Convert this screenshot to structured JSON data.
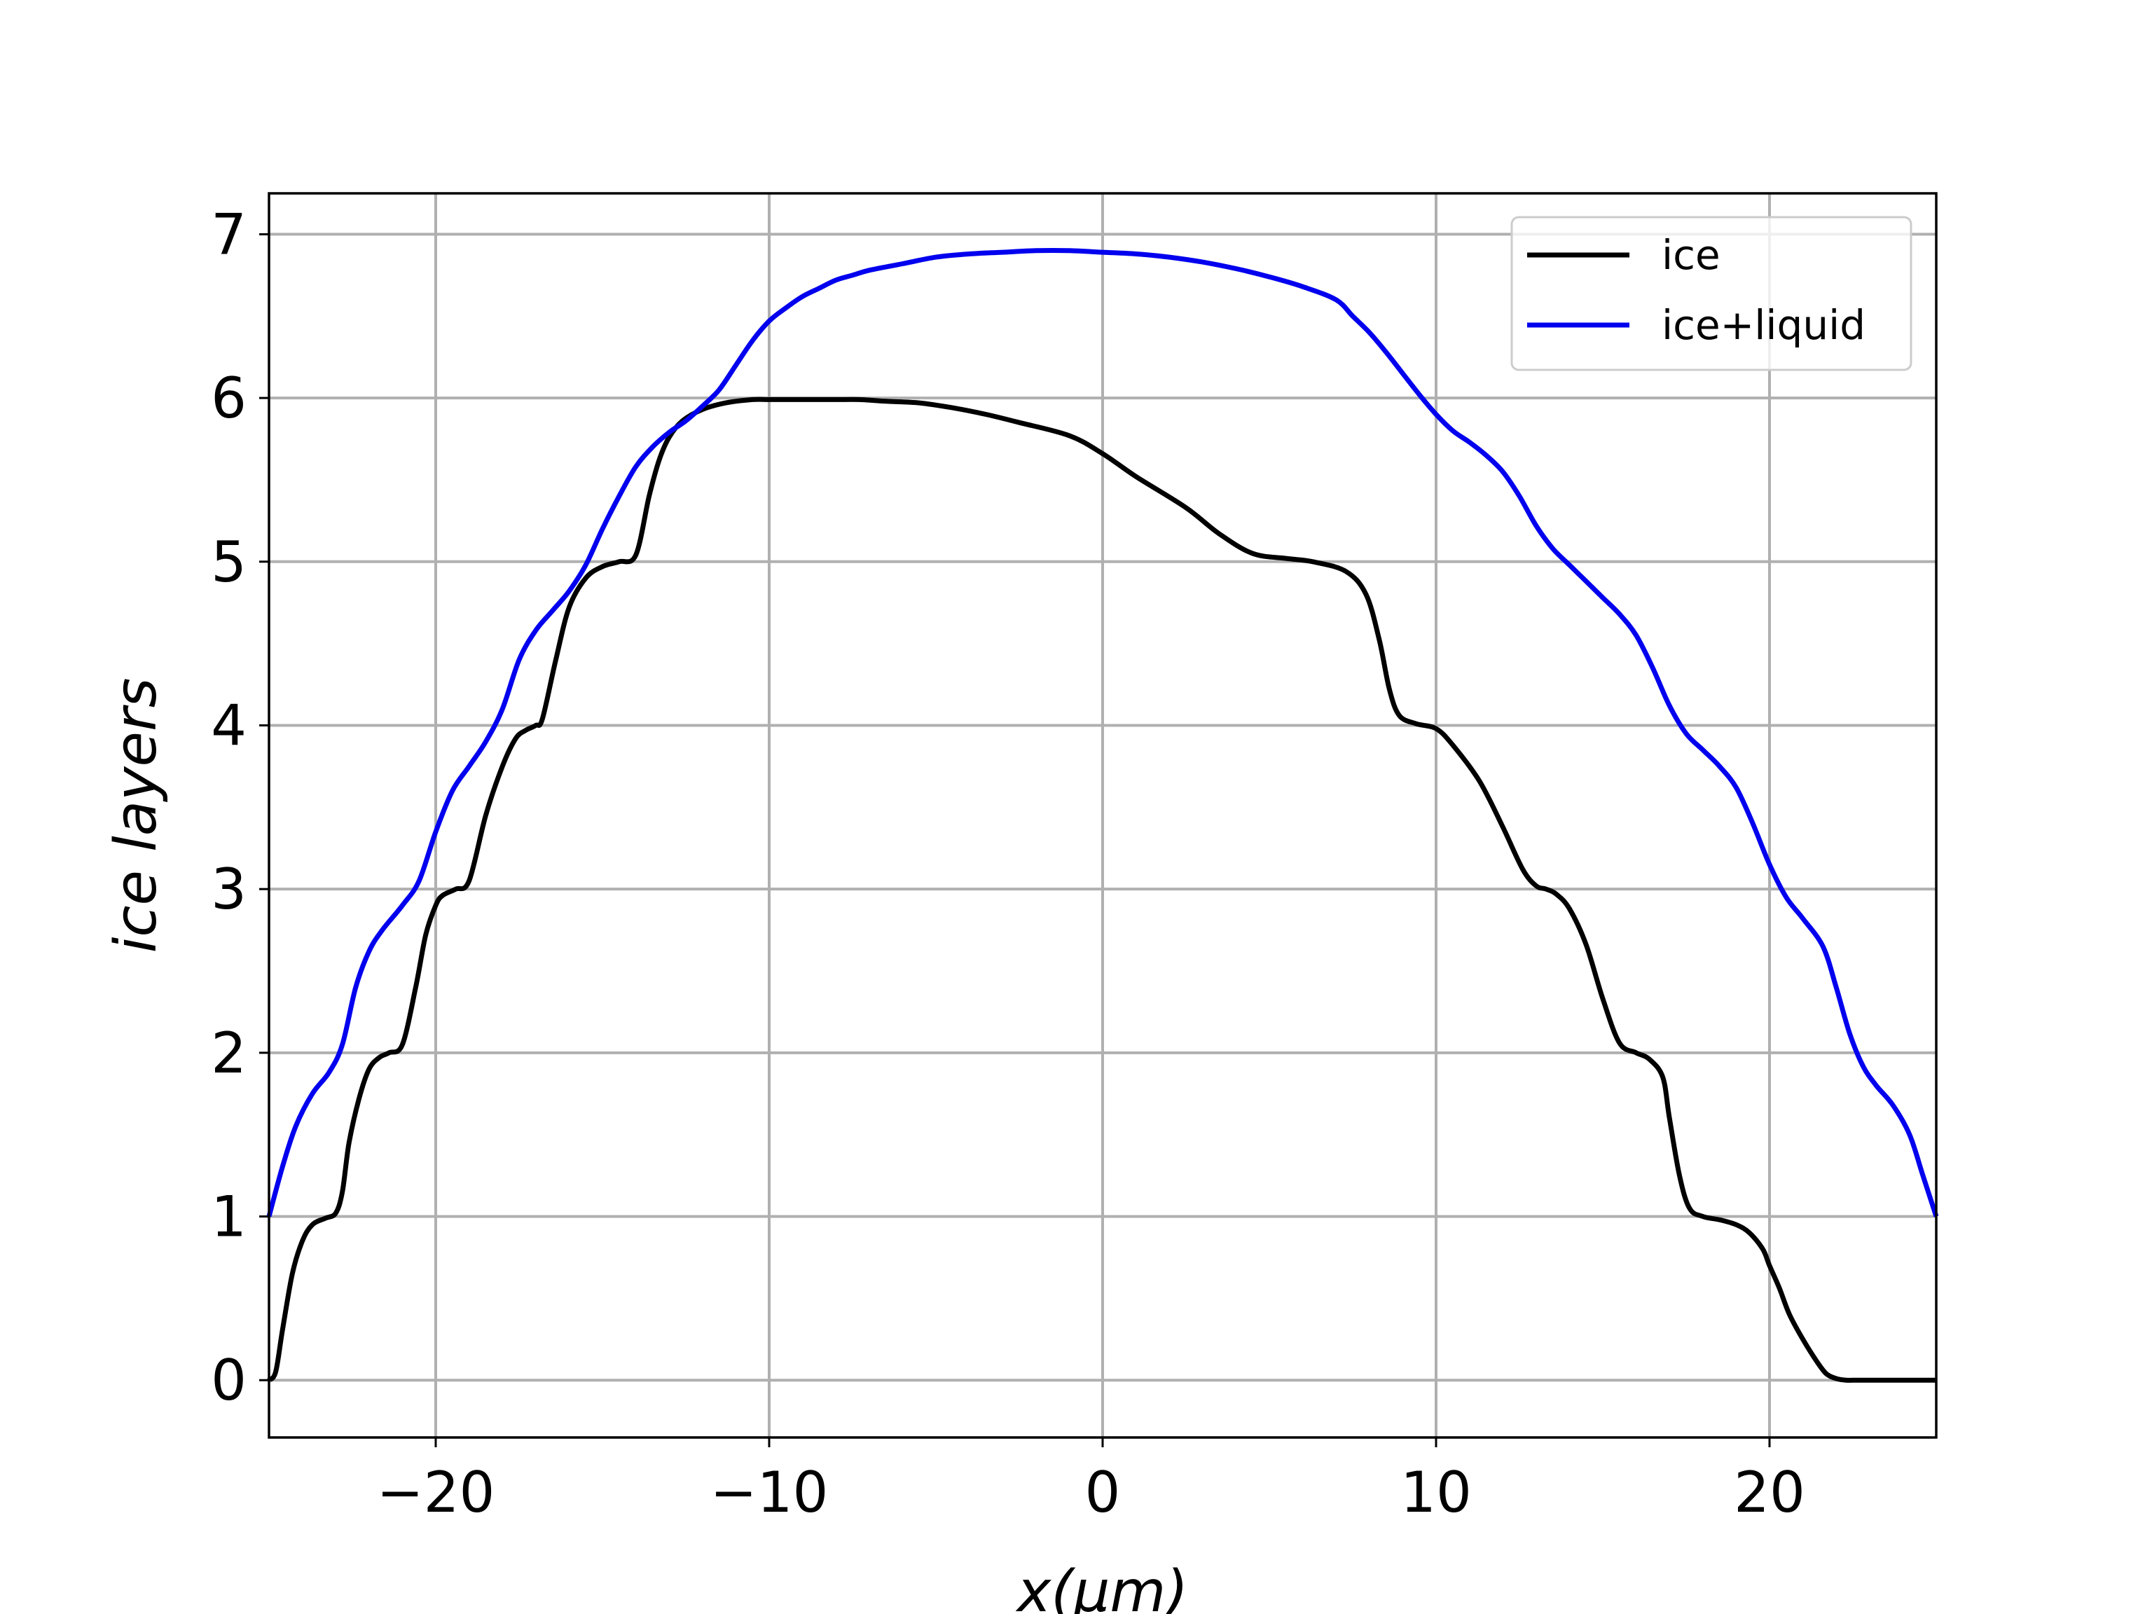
{
  "chart_data": {
    "type": "line",
    "title": "",
    "xlabel": "x(μm)",
    "ylabel": "ice layers",
    "xlim": [
      -25,
      25
    ],
    "ylim": [
      -0.35,
      7.25
    ],
    "xticks": [
      -20,
      -10,
      0,
      10,
      20
    ],
    "xtick_labels": [
      "−20",
      "−10",
      "0",
      "10",
      "20"
    ],
    "yticks": [
      0,
      1,
      2,
      3,
      4,
      5,
      6,
      7
    ],
    "ytick_labels": [
      "0",
      "1",
      "2",
      "3",
      "4",
      "5",
      "6",
      "7"
    ],
    "grid": true,
    "legend_position": "top-right",
    "series": [
      {
        "name": "ice",
        "color": "#000000",
        "x": [
          -25,
          -24.8,
          -24.6,
          -24.3,
          -24.0,
          -23.7,
          -23.3,
          -23.0,
          -22.8,
          -22.6,
          -22.3,
          -22.0,
          -21.7,
          -21.4,
          -21.0,
          -20.6,
          -20.3,
          -20.0,
          -19.8,
          -19.4,
          -19.0,
          -18.5,
          -18.0,
          -17.6,
          -17.3,
          -17.0,
          -16.8,
          -16.4,
          -16.0,
          -15.5,
          -15.0,
          -14.5,
          -14.0,
          -13.6,
          -13.3,
          -13.0,
          -12.6,
          -12.0,
          -11.3,
          -10.5,
          -10.0,
          -9.4,
          -8.9,
          -8.6,
          -8.3,
          -7.9,
          -7.3,
          -6.5,
          -5.5,
          -4.5,
          -3.5,
          -2.5,
          -1.0,
          0.0,
          1.0,
          2.5,
          3.5,
          4.5,
          5.5,
          6.3,
          7.3,
          7.9,
          8.3,
          8.6,
          8.9,
          9.4,
          10.0,
          10.5,
          11.3,
          12.0,
          12.6,
          13.0,
          13.3,
          13.6,
          14.0,
          14.5,
          15.0,
          15.5,
          16.0,
          16.4,
          16.8,
          17.0,
          17.3,
          17.6,
          18.0,
          18.5,
          19.0,
          19.4,
          19.8,
          20.0,
          20.3,
          20.6,
          21.0,
          21.4,
          21.7,
          22.0,
          22.3,
          22.6,
          22.8,
          23.0,
          23.3,
          23.7,
          24.0,
          24.3,
          24.6,
          24.8,
          25
        ],
        "y": [
          0.0,
          0.05,
          0.3,
          0.65,
          0.85,
          0.95,
          0.99,
          1.02,
          1.15,
          1.45,
          1.72,
          1.9,
          1.97,
          2.0,
          2.05,
          2.4,
          2.72,
          2.9,
          2.96,
          3.0,
          3.05,
          3.45,
          3.75,
          3.92,
          3.97,
          4.0,
          4.04,
          4.4,
          4.72,
          4.9,
          4.97,
          5.0,
          5.04,
          5.4,
          5.62,
          5.76,
          5.86,
          5.93,
          5.97,
          5.99,
          5.99,
          5.99,
          5.99,
          5.99,
          5.99,
          5.99,
          5.99,
          5.98,
          5.97,
          5.94,
          5.9,
          5.85,
          5.77,
          5.66,
          5.52,
          5.33,
          5.17,
          5.05,
          5.02,
          5.0,
          4.94,
          4.8,
          4.52,
          4.22,
          4.06,
          4.01,
          3.98,
          3.88,
          3.66,
          3.38,
          3.12,
          3.02,
          3.0,
          2.97,
          2.88,
          2.66,
          2.33,
          2.06,
          2.0,
          1.96,
          1.85,
          1.6,
          1.25,
          1.05,
          1.0,
          0.98,
          0.95,
          0.9,
          0.8,
          0.7,
          0.56,
          0.4,
          0.25,
          0.12,
          0.04,
          0.01,
          0.0,
          0.0,
          0.0,
          0.0,
          0.0,
          0.0,
          0.0,
          0.0,
          0.0,
          0.0,
          0.0
        ]
      },
      {
        "name": "ice+liquid",
        "color": "#0000ee",
        "x": [
          -25,
          -24.6,
          -24.2,
          -23.7,
          -23.2,
          -22.8,
          -22.4,
          -22.0,
          -21.6,
          -21.0,
          -20.5,
          -20.0,
          -19.5,
          -19.0,
          -18.5,
          -18.0,
          -17.5,
          -17.0,
          -16.5,
          -16.0,
          -15.5,
          -15.0,
          -14.5,
          -14.0,
          -13.5,
          -13.0,
          -12.5,
          -12.0,
          -11.5,
          -11.0,
          -10.5,
          -10.0,
          -9.5,
          -9.0,
          -8.5,
          -8.0,
          -7.5,
          -7.0,
          -6.0,
          -5.0,
          -4.0,
          -3.0,
          -2.0,
          -1.0,
          0.0,
          1.0,
          2.0,
          3.0,
          4.0,
          5.0,
          6.0,
          7.0,
          7.5,
          8.0,
          8.5,
          9.0,
          9.5,
          10.0,
          10.5,
          11.0,
          11.5,
          12.0,
          12.5,
          13.0,
          13.5,
          14.0,
          14.5,
          15.0,
          15.5,
          16.0,
          16.5,
          17.0,
          17.5,
          18.0,
          18.5,
          19.0,
          19.5,
          20.0,
          20.5,
          21.0,
          21.6,
          22.0,
          22.4,
          22.8,
          23.2,
          23.7,
          24.2,
          24.6,
          25
        ],
        "y": [
          1.0,
          1.3,
          1.55,
          1.75,
          1.88,
          2.05,
          2.4,
          2.62,
          2.75,
          2.9,
          3.05,
          3.35,
          3.6,
          3.75,
          3.9,
          4.1,
          4.4,
          4.58,
          4.7,
          4.82,
          4.98,
          5.2,
          5.4,
          5.58,
          5.7,
          5.79,
          5.86,
          5.95,
          6.05,
          6.2,
          6.35,
          6.47,
          6.55,
          6.62,
          6.67,
          6.72,
          6.75,
          6.78,
          6.82,
          6.86,
          6.88,
          6.89,
          6.9,
          6.9,
          6.89,
          6.88,
          6.86,
          6.83,
          6.79,
          6.74,
          6.68,
          6.6,
          6.5,
          6.4,
          6.28,
          6.15,
          6.02,
          5.9,
          5.8,
          5.73,
          5.65,
          5.55,
          5.4,
          5.22,
          5.08,
          4.98,
          4.88,
          4.78,
          4.68,
          4.55,
          4.35,
          4.12,
          3.95,
          3.85,
          3.75,
          3.62,
          3.4,
          3.15,
          2.95,
          2.82,
          2.65,
          2.4,
          2.12,
          1.92,
          1.8,
          1.68,
          1.5,
          1.25,
          1.0
        ]
      }
    ]
  }
}
